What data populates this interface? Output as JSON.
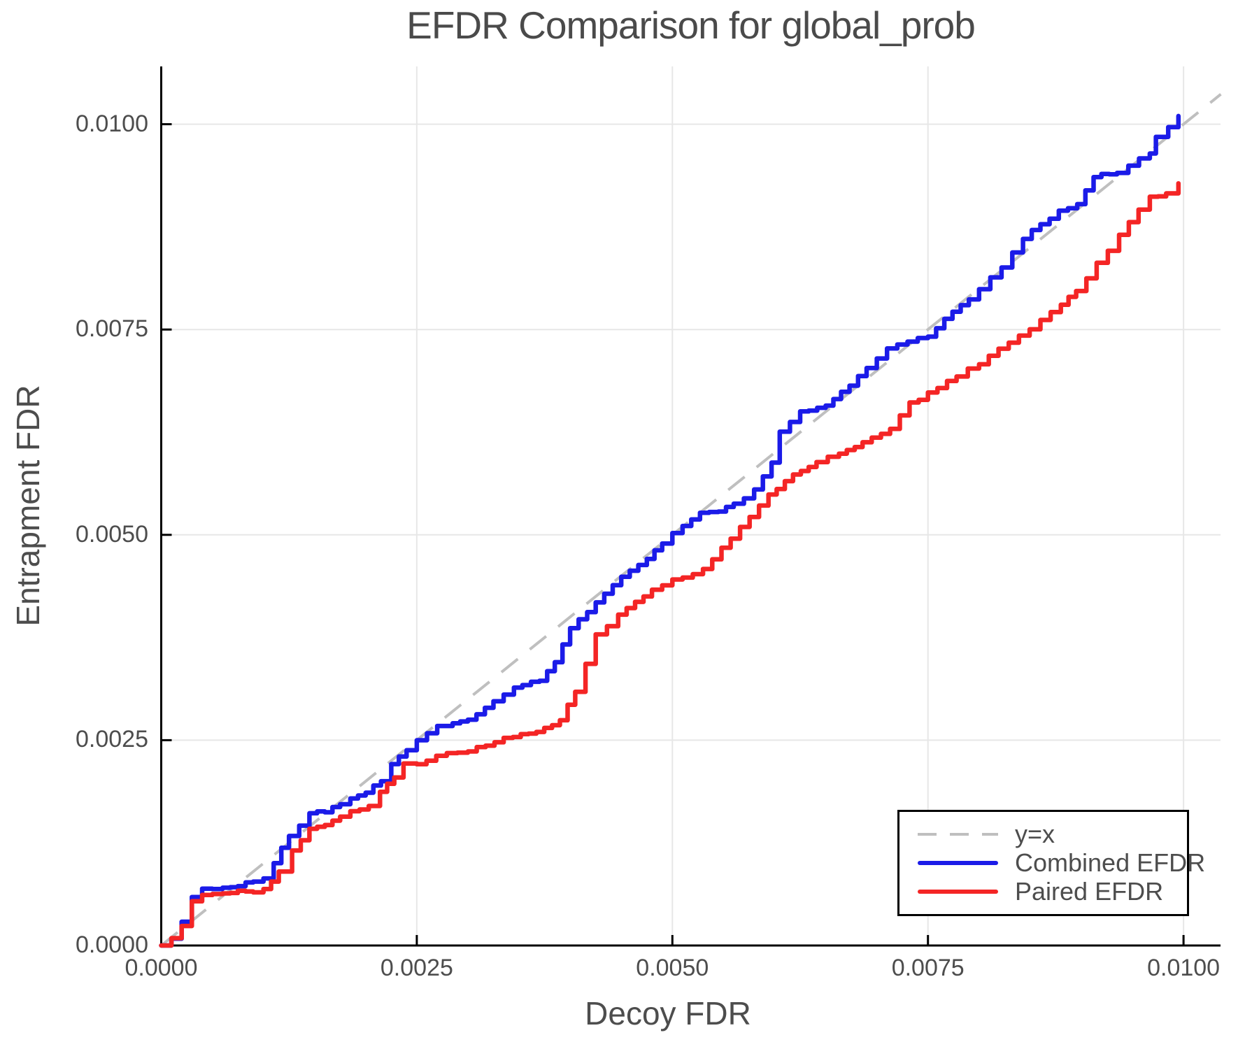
{
  "title": "EFDR Comparison for global_prob",
  "axes": {
    "x": {
      "label": "Decoy FDR",
      "tick_labels": [
        "0.0000",
        "0.0025",
        "0.0050",
        "0.0075",
        "0.0100"
      ],
      "tick_values": [
        0,
        0.0025,
        0.005,
        0.0075,
        0.01
      ]
    },
    "y": {
      "label": "Entrapment FDR",
      "tick_labels": [
        "0.0000",
        "0.0025",
        "0.0050",
        "0.0075",
        "0.0100"
      ],
      "tick_values": [
        0,
        0.0025,
        0.005,
        0.0075,
        0.01
      ]
    }
  },
  "legend": {
    "position": "lower-right-inside",
    "entries": [
      {
        "label": "y=x",
        "style": "dashed",
        "color_key": "dashed"
      },
      {
        "label": "Combined EFDR",
        "style": "solid",
        "color_key": "blue"
      },
      {
        "label": "Paired EFDR",
        "style": "solid",
        "color_key": "red"
      }
    ]
  },
  "colors": {
    "blue": "#1b1be8",
    "red": "#f42525",
    "dashed": "#bfbfbf",
    "grid": "#e7e7e7",
    "text": "#4d4d4d",
    "title_text": "#4a4a4a",
    "spine": "#000000",
    "legend_border": "#000000",
    "background": "#ffffff"
  },
  "chart_data": {
    "type": "line",
    "title": "EFDR Comparison for global_prob",
    "xlabel": "Decoy FDR",
    "ylabel": "Entrapment FDR",
    "xlim": [
      0,
      0.010365
    ],
    "ylim": [
      0,
      0.010705
    ],
    "grid": true,
    "legend_position": "lower right",
    "reference_line": {
      "label": "y=x",
      "style": "dashed",
      "color": "#bfbfbf",
      "from": [
        0,
        0
      ],
      "to": [
        0.010365,
        0.010365
      ]
    },
    "series": [
      {
        "name": "Combined EFDR",
        "color": "#1b1be8",
        "style": "solid",
        "points": [
          [
            0.0,
            0.0
          ],
          [
            0.0001,
            0.0001
          ],
          [
            0.0002,
            0.0003
          ],
          [
            0.0003,
            0.0006
          ],
          [
            0.0004,
            0.00068
          ],
          [
            0.0005,
            0.0007
          ],
          [
            0.0006,
            0.00071
          ],
          [
            0.00075,
            0.00074
          ],
          [
            0.0009,
            0.00077
          ],
          [
            0.001,
            0.0008
          ],
          [
            0.0011,
            0.001
          ],
          [
            0.00125,
            0.00135
          ],
          [
            0.00145,
            0.0016
          ],
          [
            0.0016,
            0.00163
          ],
          [
            0.00175,
            0.00172
          ],
          [
            0.00185,
            0.00179
          ],
          [
            0.002,
            0.00186
          ],
          [
            0.00215,
            0.002
          ],
          [
            0.00225,
            0.0022
          ],
          [
            0.0024,
            0.00238
          ],
          [
            0.0025,
            0.00249
          ],
          [
            0.0027,
            0.00266
          ],
          [
            0.00285,
            0.0027
          ],
          [
            0.003,
            0.00274
          ],
          [
            0.00325,
            0.00297
          ],
          [
            0.00345,
            0.00315
          ],
          [
            0.0037,
            0.00322
          ],
          [
            0.00385,
            0.00345
          ],
          [
            0.004,
            0.00385
          ],
          [
            0.00425,
            0.00419
          ],
          [
            0.0045,
            0.0045
          ],
          [
            0.00475,
            0.0047
          ],
          [
            0.0049,
            0.0049
          ],
          [
            0.0051,
            0.00512
          ],
          [
            0.00527,
            0.00528
          ],
          [
            0.00545,
            0.00528
          ],
          [
            0.0056,
            0.00537
          ],
          [
            0.0058,
            0.00555
          ],
          [
            0.00597,
            0.00587
          ],
          [
            0.00605,
            0.00626
          ],
          [
            0.00625,
            0.00649
          ],
          [
            0.0065,
            0.00658
          ],
          [
            0.00665,
            0.00674
          ],
          [
            0.0069,
            0.00702
          ],
          [
            0.0071,
            0.00727
          ],
          [
            0.0073,
            0.00737
          ],
          [
            0.0075,
            0.00742
          ],
          [
            0.00766,
            0.00762
          ],
          [
            0.0079,
            0.00787
          ],
          [
            0.008,
            0.008
          ],
          [
            0.00822,
            0.00825
          ],
          [
            0.00843,
            0.00862
          ],
          [
            0.0086,
            0.00879
          ],
          [
            0.00878,
            0.00894
          ],
          [
            0.00896,
            0.00904
          ],
          [
            0.00912,
            0.00937
          ],
          [
            0.00935,
            0.0094
          ],
          [
            0.00946,
            0.00951
          ],
          [
            0.00967,
            0.00966
          ],
          [
            0.00973,
            0.00983
          ],
          [
            0.00985,
            0.00996
          ],
          [
            0.00995,
            0.0101
          ]
        ]
      },
      {
        "name": "Paired EFDR",
        "color": "#f42525",
        "style": "solid",
        "points": [
          [
            0.0,
            0.0
          ],
          [
            0.0001,
            8e-05
          ],
          [
            0.0002,
            0.00025
          ],
          [
            0.0003,
            0.00055
          ],
          [
            0.0004,
            0.0006
          ],
          [
            0.0005,
            0.00062
          ],
          [
            0.0006,
            0.00064
          ],
          [
            0.00075,
            0.00065
          ],
          [
            0.0009,
            0.00066
          ],
          [
            0.001,
            0.00068
          ],
          [
            0.00115,
            0.0009
          ],
          [
            0.00128,
            0.00115
          ],
          [
            0.00145,
            0.00142
          ],
          [
            0.0016,
            0.00146
          ],
          [
            0.00175,
            0.00157
          ],
          [
            0.00185,
            0.00165
          ],
          [
            0.00203,
            0.00169
          ],
          [
            0.00214,
            0.00187
          ],
          [
            0.00228,
            0.00205
          ],
          [
            0.00237,
            0.0022
          ],
          [
            0.0025,
            0.0022
          ],
          [
            0.00269,
            0.00232
          ],
          [
            0.003,
            0.00237
          ],
          [
            0.00326,
            0.00249
          ],
          [
            0.00344,
            0.00254
          ],
          [
            0.00367,
            0.0026
          ],
          [
            0.0039,
            0.00274
          ],
          [
            0.00405,
            0.0031
          ],
          [
            0.00425,
            0.00379
          ],
          [
            0.00447,
            0.00402
          ],
          [
            0.0048,
            0.00433
          ],
          [
            0.005,
            0.00445
          ],
          [
            0.0053,
            0.00457
          ],
          [
            0.00557,
            0.00496
          ],
          [
            0.00594,
            0.00548
          ],
          [
            0.00618,
            0.00572
          ],
          [
            0.00641,
            0.00589
          ],
          [
            0.00663,
            0.006
          ],
          [
            0.00686,
            0.00612
          ],
          [
            0.00713,
            0.0063
          ],
          [
            0.00732,
            0.0066
          ],
          [
            0.0075,
            0.00672
          ],
          [
            0.00778,
            0.00694
          ],
          [
            0.008,
            0.00708
          ],
          [
            0.00819,
            0.00725
          ],
          [
            0.00839,
            0.00742
          ],
          [
            0.0086,
            0.00761
          ],
          [
            0.0088,
            0.00781
          ],
          [
            0.00895,
            0.00796
          ],
          [
            0.00915,
            0.0083
          ],
          [
            0.00937,
            0.00864
          ],
          [
            0.00956,
            0.00896
          ],
          [
            0.00967,
            0.0091
          ],
          [
            0.00983,
            0.00917
          ],
          [
            0.00995,
            0.00928
          ]
        ]
      }
    ]
  }
}
